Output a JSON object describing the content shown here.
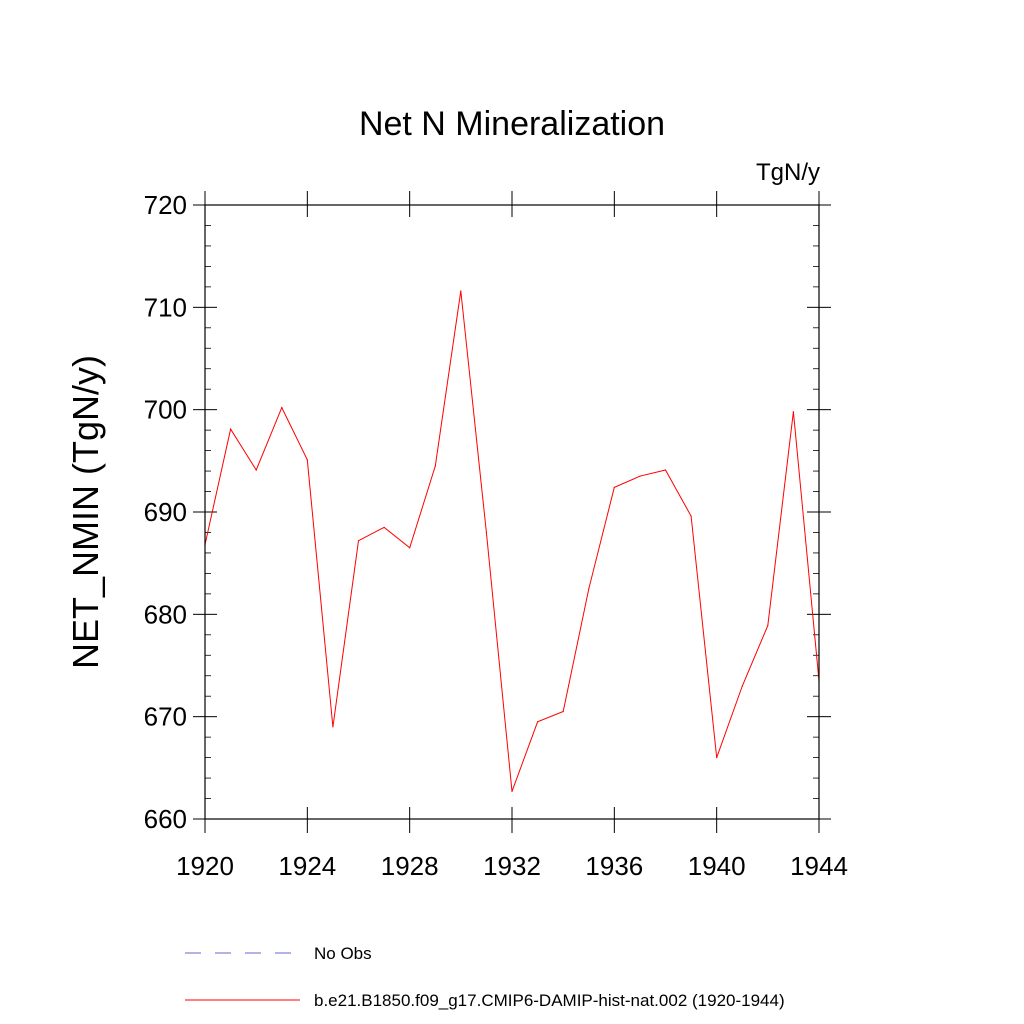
{
  "chart_data": {
    "type": "line",
    "title": "Net N Mineralization",
    "units_label": "TgN/y",
    "xlabel": "",
    "ylabel": "NET_NMIN  (TgN/y)",
    "xlim": [
      1920,
      1944
    ],
    "ylim": [
      660,
      720
    ],
    "x_ticks": [
      1920,
      1924,
      1928,
      1932,
      1936,
      1940,
      1944
    ],
    "y_ticks": [
      660,
      670,
      680,
      690,
      700,
      710,
      720
    ],
    "series": [
      {
        "name": "b.e21.B1850.f09_g17.CMIP6-DAMIP-hist-nat.002 (1920-1944)",
        "color": "#ff0000",
        "x": [
          1920,
          1921,
          1922,
          1923,
          1924,
          1925,
          1926,
          1927,
          1928,
          1929,
          1930,
          1931,
          1932,
          1933,
          1934,
          1935,
          1936,
          1937,
          1938,
          1939,
          1940,
          1941,
          1942,
          1943,
          1944
        ],
        "y": [
          686.8,
          698.1,
          694.1,
          700.2,
          695.1,
          669.0,
          687.2,
          688.5,
          686.5,
          694.5,
          711.6,
          688.0,
          662.7,
          669.5,
          670.5,
          682.5,
          692.4,
          693.5,
          694.1,
          689.6,
          666.0,
          673.0,
          678.9,
          699.8,
          673.5
        ]
      }
    ],
    "legend": [
      {
        "label": "No Obs",
        "style": "dashed",
        "color": "#6666cc"
      },
      {
        "label": "b.e21.B1850.f09_g17.CMIP6-DAMIP-hist-nat.002 (1920-1944)",
        "style": "solid",
        "color": "#ff0000"
      }
    ]
  }
}
